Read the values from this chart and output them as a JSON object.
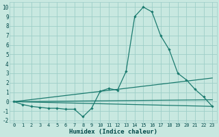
{
  "xlabel": "Humidex (Indice chaleur)",
  "xlim": [
    -0.5,
    23.5
  ],
  "ylim": [
    -2.2,
    10.5
  ],
  "bg_color": "#c8e8e0",
  "grid_color": "#9ecec8",
  "line_color": "#1a7a6e",
  "xticks": [
    0,
    1,
    2,
    3,
    4,
    5,
    6,
    7,
    8,
    9,
    10,
    11,
    12,
    13,
    14,
    15,
    16,
    17,
    18,
    19,
    20,
    21,
    22,
    23
  ],
  "yticks": [
    -2,
    -1,
    0,
    1,
    2,
    3,
    4,
    5,
    6,
    7,
    8,
    9,
    10
  ],
  "curves": [
    {
      "x": [
        0,
        1,
        2,
        3,
        4,
        5,
        6,
        7,
        8,
        9,
        10,
        11,
        12,
        13,
        14,
        15,
        16,
        17,
        18,
        19,
        20,
        21,
        22,
        23
      ],
      "y": [
        0,
        -0.3,
        -0.5,
        -0.6,
        -0.7,
        -0.7,
        -0.8,
        -0.8,
        -1.6,
        -0.7,
        1.1,
        1.4,
        1.2,
        3.2,
        9.0,
        10.0,
        9.5,
        7.0,
        5.5,
        3.0,
        2.3,
        1.3,
        0.5,
        -0.5
      ],
      "marker": true
    },
    {
      "x": [
        0,
        23
      ],
      "y": [
        0,
        2.5
      ],
      "marker": false
    },
    {
      "x": [
        0,
        23
      ],
      "y": [
        0,
        0.2
      ],
      "marker": false
    },
    {
      "x": [
        0,
        23
      ],
      "y": [
        0,
        -0.5
      ],
      "marker": false
    }
  ]
}
